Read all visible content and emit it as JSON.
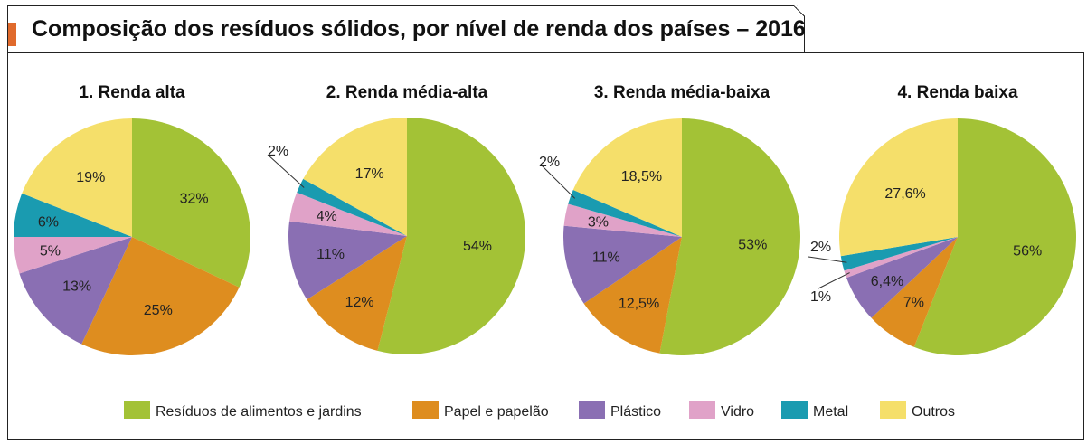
{
  "title": "Composição dos resíduos sólidos, por nível de renda dos países – 2016",
  "colors": {
    "Resíduos de alimentos e jardins": "#a3c236",
    "Papel e papelão": "#de8d1f",
    "Plástico": "#8a6fb3",
    "Vidro": "#e0a2c8",
    "Metal": "#1a9bb0",
    "Outros": "#f5df6a"
  },
  "legend": [
    "Resíduos de alimentos e jardins",
    "Papel e papelão",
    "Plástico",
    "Vidro",
    "Metal",
    "Outros"
  ],
  "chart_data": [
    {
      "type": "pie",
      "title": "1. Renda alta",
      "slices": [
        {
          "category": "Resíduos de alimentos e jardins",
          "value": 32,
          "label": "32%"
        },
        {
          "category": "Papel e papelão",
          "value": 25,
          "label": "25%"
        },
        {
          "category": "Plástico",
          "value": 13,
          "label": "13%"
        },
        {
          "category": "Vidro",
          "value": 5,
          "label": "5%"
        },
        {
          "category": "Metal",
          "value": 6,
          "label": "6%"
        },
        {
          "category": "Outros",
          "value": 19,
          "label": "19%"
        }
      ]
    },
    {
      "type": "pie",
      "title": "2. Renda média-alta",
      "slices": [
        {
          "category": "Resíduos de alimentos e jardins",
          "value": 54,
          "label": "54%"
        },
        {
          "category": "Papel e papelão",
          "value": 12,
          "label": "12%"
        },
        {
          "category": "Plástico",
          "value": 11,
          "label": "11%"
        },
        {
          "category": "Vidro",
          "value": 4,
          "label": "4%"
        },
        {
          "category": "Metal",
          "value": 2,
          "label": "2%"
        },
        {
          "category": "Outros",
          "value": 17,
          "label": "17%"
        }
      ]
    },
    {
      "type": "pie",
      "title": "3. Renda média-baixa",
      "slices": [
        {
          "category": "Resíduos de alimentos e jardins",
          "value": 53,
          "label": "53%"
        },
        {
          "category": "Papel e papelão",
          "value": 12.5,
          "label": "12,5%"
        },
        {
          "category": "Plástico",
          "value": 11,
          "label": "11%"
        },
        {
          "category": "Vidro",
          "value": 3,
          "label": "3%"
        },
        {
          "category": "Metal",
          "value": 2,
          "label": "2%"
        },
        {
          "category": "Outros",
          "value": 18.5,
          "label": "18,5%"
        }
      ]
    },
    {
      "type": "pie",
      "title": "4. Renda baixa",
      "slices": [
        {
          "category": "Resíduos de alimentos e jardins",
          "value": 56,
          "label": "56%"
        },
        {
          "category": "Papel e papelão",
          "value": 7,
          "label": "7%"
        },
        {
          "category": "Plástico",
          "value": 6.4,
          "label": "6,4%"
        },
        {
          "category": "Vidro",
          "value": 1,
          "label": "1%"
        },
        {
          "category": "Metal",
          "value": 2,
          "label": "2%"
        },
        {
          "category": "Outros",
          "value": 27.6,
          "label": "27,6%"
        }
      ]
    }
  ]
}
